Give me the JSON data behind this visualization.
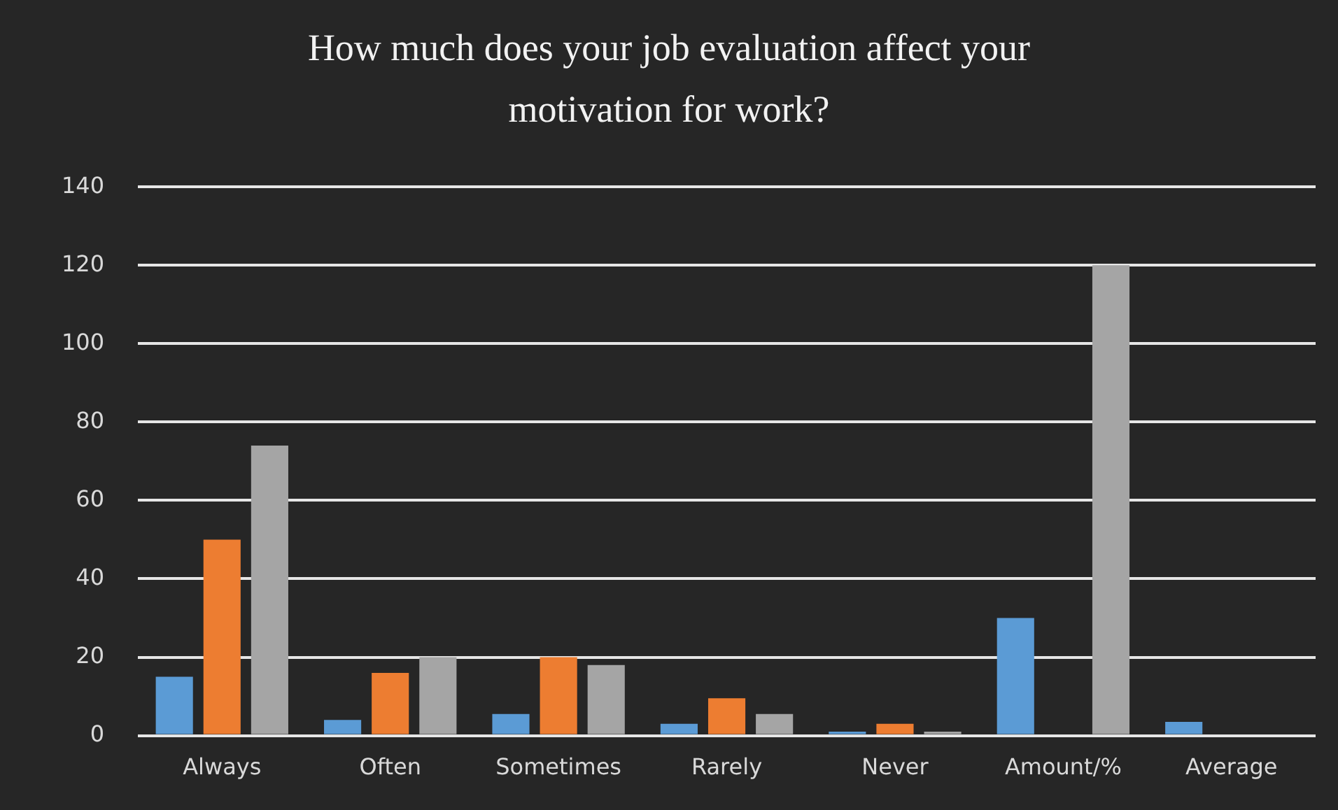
{
  "chart_data": {
    "type": "bar",
    "title": "How much does your job evaluation affect your motivation for work?",
    "categories": [
      "Always",
      "Often",
      "Sometimes",
      "Rarely",
      "Never",
      "Amount/%",
      "Average"
    ],
    "series": [
      {
        "color": "#5b9bd5",
        "values": [
          15,
          4,
          5.5,
          3,
          1,
          30,
          3.5
        ]
      },
      {
        "color": "#ed7d31",
        "values": [
          50,
          16,
          20,
          9.5,
          3,
          0,
          0
        ]
      },
      {
        "color": "#a5a5a5",
        "values": [
          74,
          20,
          18,
          5.5,
          1,
          120,
          0
        ]
      }
    ],
    "ylim": [
      0,
      140
    ],
    "yticks": [
      0,
      20,
      40,
      60,
      80,
      100,
      120,
      140
    ],
    "grid": "y",
    "legend": false
  }
}
